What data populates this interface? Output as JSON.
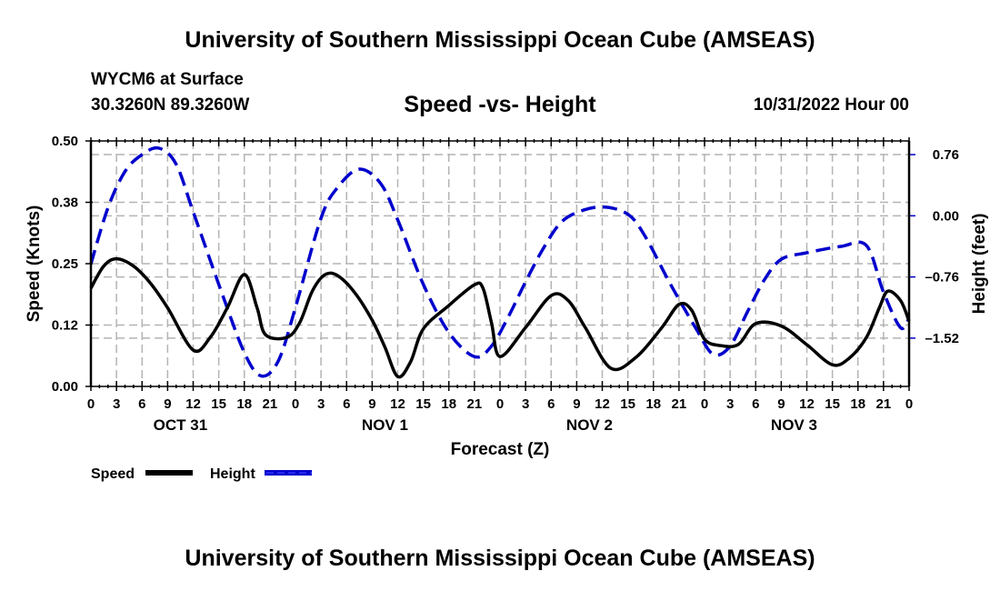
{
  "header": {
    "top_title": "University of Southern Mississippi Ocean Cube (AMSEAS)",
    "station": "WYCM6 at Surface",
    "coords": "30.3260N  89.3260W",
    "chart_title": "Speed -vs- Height",
    "datetime": "10/31/2022 Hour 00",
    "bottom_title": "University of Southern Mississippi Ocean Cube (AMSEAS)"
  },
  "chart_data": {
    "type": "line",
    "title": "Speed -vs- Height",
    "xlabel": "Forecast (Z)",
    "ylabel": "Speed (Knots)",
    "y2label": "Height (feet)",
    "xlim": [
      0,
      96
    ],
    "ylim": [
      0,
      0.5
    ],
    "y2lim": [
      -2.12,
      0.93
    ],
    "grid": true,
    "legend_position": "bottom-left",
    "x_tick_labels": [
      "0",
      "3",
      "6",
      "9",
      "12",
      "15",
      "18",
      "21",
      "0",
      "3",
      "6",
      "9",
      "12",
      "15",
      "18",
      "21",
      "0",
      "3",
      "6",
      "9",
      "12",
      "15",
      "18",
      "21",
      "0",
      "3",
      "6",
      "9",
      "12",
      "15",
      "18",
      "21",
      "0"
    ],
    "day_labels": [
      {
        "label": "OCT 31",
        "hour": 10.5
      },
      {
        "label": "NOV 1",
        "hour": 34.5
      },
      {
        "label": "NOV 2",
        "hour": 58.5
      },
      {
        "label": "NOV 3",
        "hour": 82.5
      }
    ],
    "y_ticks": [
      {
        "value": 0.0,
        "label": "0.00"
      },
      {
        "value": 0.125,
        "label": "0.12"
      },
      {
        "value": 0.25,
        "label": "0.25"
      },
      {
        "value": 0.375,
        "label": "0.38"
      },
      {
        "value": 0.5,
        "label": "0.50"
      }
    ],
    "y2_ticks": [
      {
        "value": 0.76,
        "label": "0.76"
      },
      {
        "value": 0.0,
        "label": "0.00"
      },
      {
        "value": -0.76,
        "label": "–0.76"
      },
      {
        "value": -1.52,
        "label": "–1.52"
      }
    ],
    "series": [
      {
        "name": "Speed",
        "axis": "left",
        "color": "#000000",
        "style": "solid",
        "x": [
          0,
          1.5,
          3,
          5,
          7,
          9,
          12,
          14,
          16,
          18,
          19.5,
          20.5,
          23,
          24.5,
          26,
          27.5,
          29,
          31,
          33,
          34.5,
          36,
          37.5,
          39,
          42,
          45,
          46,
          47,
          48,
          51,
          54,
          56,
          58,
          61,
          64,
          67,
          69,
          70.5,
          72,
          74,
          76,
          78,
          81,
          84,
          87,
          89,
          91,
          92.5,
          93.5,
          95,
          96
        ],
        "values": [
          0.2,
          0.245,
          0.26,
          0.245,
          0.21,
          0.16,
          0.074,
          0.1,
          0.16,
          0.228,
          0.16,
          0.105,
          0.1,
          0.13,
          0.195,
          0.228,
          0.225,
          0.19,
          0.135,
          0.08,
          0.02,
          0.05,
          0.117,
          0.165,
          0.207,
          0.2,
          0.13,
          0.061,
          0.12,
          0.185,
          0.175,
          0.12,
          0.037,
          0.06,
          0.12,
          0.167,
          0.155,
          0.096,
          0.083,
          0.086,
          0.128,
          0.123,
          0.085,
          0.044,
          0.058,
          0.1,
          0.16,
          0.194,
          0.175,
          0.133
        ]
      },
      {
        "name": "Height",
        "axis": "right",
        "color": "#0000cc",
        "style": "dashed",
        "x": [
          0,
          2,
          4,
          6,
          8,
          10,
          12,
          15,
          18,
          20,
          22,
          24,
          27,
          29,
          31.5,
          34,
          36,
          39,
          42,
          45,
          47,
          49,
          51,
          53,
          55,
          57,
          60,
          63,
          65,
          68,
          71,
          73,
          75,
          77,
          79,
          81,
          84,
          88,
          91,
          93,
          95,
          96
        ],
        "values": [
          -0.6,
          0.1,
          0.55,
          0.76,
          0.84,
          0.64,
          0.05,
          -0.85,
          -1.7,
          -1.99,
          -1.8,
          -1.14,
          -0.03,
          0.36,
          0.58,
          0.4,
          -0.05,
          -0.85,
          -1.45,
          -1.75,
          -1.62,
          -1.25,
          -0.82,
          -0.42,
          -0.1,
          0.04,
          0.11,
          0.02,
          -0.25,
          -0.85,
          -1.4,
          -1.72,
          -1.62,
          -1.2,
          -0.8,
          -0.54,
          -0.46,
          -0.38,
          -0.37,
          -0.95,
          -1.39,
          -1.27
        ]
      }
    ]
  }
}
